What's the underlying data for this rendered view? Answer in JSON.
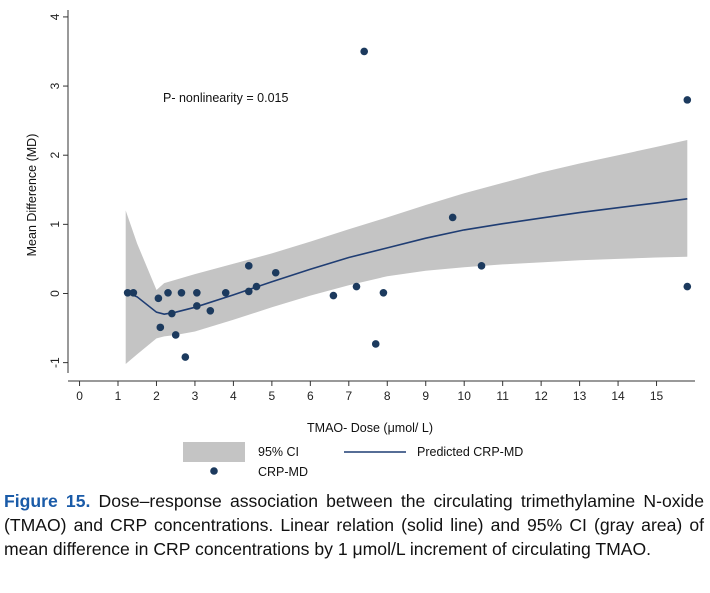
{
  "chart_data": {
    "type": "scatter",
    "xlabel": "TMAO- Dose (μmol/ L)",
    "ylabel": "Mean Difference (MD)",
    "xlim": [
      -0.3,
      16
    ],
    "ylim": [
      -1.15,
      4.1
    ],
    "xticks": [
      0,
      1,
      2,
      3,
      4,
      5,
      6,
      7,
      8,
      9,
      10,
      11,
      12,
      13,
      14,
      15
    ],
    "yticks": [
      -1,
      0,
      1,
      2,
      3,
      4
    ],
    "annotation": "P- nonlinearity = 0.015",
    "grid": false,
    "colors": {
      "ci_fill": "#c4c4c4",
      "line": "#1f3d73",
      "points": "#1c3a5e"
    },
    "series": [
      {
        "name": "95% CI",
        "kind": "area",
        "x": [
          1.2,
          1.5,
          2.0,
          2.2,
          2.5,
          3.0,
          4.0,
          5.0,
          6.0,
          7.0,
          8.0,
          9.0,
          10.0,
          11.0,
          12.0,
          13.0,
          14.0,
          15.0,
          15.8
        ],
        "upper": [
          1.2,
          0.72,
          0.05,
          0.15,
          0.2,
          0.28,
          0.43,
          0.58,
          0.75,
          0.93,
          1.1,
          1.28,
          1.45,
          1.6,
          1.75,
          1.88,
          2.0,
          2.12,
          2.22
        ],
        "lower": [
          -1.02,
          -0.88,
          -0.65,
          -0.62,
          -0.6,
          -0.55,
          -0.38,
          -0.2,
          -0.03,
          0.12,
          0.25,
          0.33,
          0.38,
          0.42,
          0.45,
          0.48,
          0.5,
          0.52,
          0.53
        ]
      },
      {
        "name": "Predicted CRP-MD",
        "kind": "line",
        "x": [
          1.2,
          1.5,
          2.0,
          2.2,
          2.5,
          3.0,
          4.0,
          5.0,
          6.0,
          7.0,
          8.0,
          9.0,
          10.0,
          11.0,
          12.0,
          13.0,
          14.0,
          15.0,
          15.8
        ],
        "y": [
          0.02,
          -0.05,
          -0.27,
          -0.3,
          -0.27,
          -0.2,
          -0.02,
          0.17,
          0.35,
          0.52,
          0.66,
          0.8,
          0.92,
          1.01,
          1.09,
          1.17,
          1.24,
          1.31,
          1.37
        ]
      },
      {
        "name": "CRP-MD",
        "kind": "scatter",
        "points": [
          [
            1.25,
            0.01
          ],
          [
            1.4,
            0.01
          ],
          [
            2.05,
            -0.07
          ],
          [
            2.1,
            -0.49
          ],
          [
            2.3,
            0.01
          ],
          [
            2.4,
            -0.29
          ],
          [
            2.5,
            -0.6
          ],
          [
            2.65,
            0.01
          ],
          [
            2.75,
            -0.92
          ],
          [
            3.05,
            0.01
          ],
          [
            3.05,
            -0.18
          ],
          [
            3.4,
            -0.25
          ],
          [
            3.8,
            0.01
          ],
          [
            4.4,
            0.4
          ],
          [
            4.4,
            0.03
          ],
          [
            4.6,
            0.1
          ],
          [
            5.1,
            0.3
          ],
          [
            6.6,
            -0.03
          ],
          [
            7.2,
            0.1
          ],
          [
            7.4,
            3.5
          ],
          [
            7.7,
            -0.73
          ],
          [
            7.9,
            0.01
          ],
          [
            9.7,
            1.1
          ],
          [
            10.45,
            0.4
          ],
          [
            15.8,
            2.8
          ],
          [
            15.8,
            0.1
          ]
        ]
      }
    ],
    "legend": {
      "placement": "bottom",
      "items": [
        {
          "label": "95% CI",
          "symbol": "area"
        },
        {
          "label": "Predicted CRP-MD",
          "symbol": "line"
        },
        {
          "label": "CRP-MD",
          "symbol": "marker"
        }
      ]
    }
  },
  "caption": {
    "label": "Figure 15.",
    "text": " Dose–response association between the circulating trimethylamine N-oxide (TMAO) and CRP concentrations. Linear relation (solid line) and 95% CI (gray area) of mean difference in CRP concentrations by 1 μmol/L increment of circulating TMAO."
  }
}
